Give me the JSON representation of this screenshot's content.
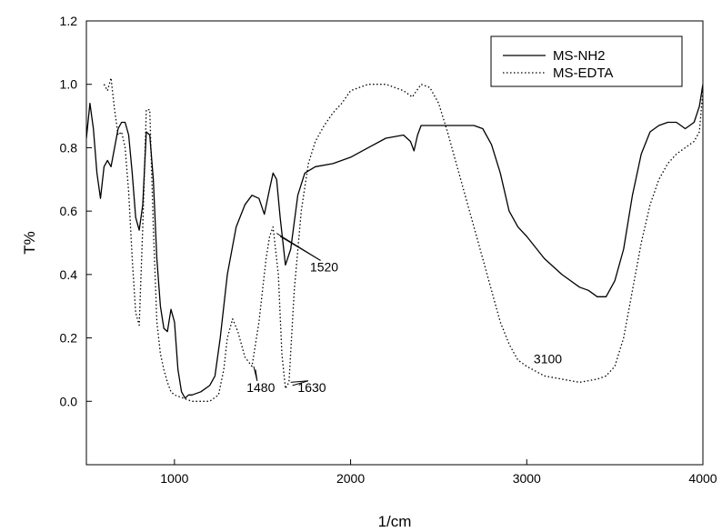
{
  "chart_data": {
    "type": "line",
    "title": "",
    "xlabel": "1/cm",
    "ylabel": "T%",
    "xlim": [
      500,
      4000
    ],
    "ylim": [
      -0.2,
      1.2
    ],
    "xticks": [
      1000,
      2000,
      3000,
      4000
    ],
    "yticks": [
      0.0,
      0.2,
      0.4,
      0.6,
      0.8,
      1.0,
      1.2
    ],
    "ytick_labels": [
      "0.0",
      "0.2",
      "0.4",
      "0.6",
      "0.8",
      "1.0",
      "1.2"
    ],
    "grid": false,
    "legend": {
      "placement": "top-right"
    },
    "series": [
      {
        "name": "MS-NH2",
        "style": "solid",
        "color": "#000000",
        "points": [
          [
            500,
            0.83
          ],
          [
            520,
            0.94
          ],
          [
            540,
            0.86
          ],
          [
            560,
            0.72
          ],
          [
            580,
            0.64
          ],
          [
            600,
            0.74
          ],
          [
            620,
            0.76
          ],
          [
            640,
            0.74
          ],
          [
            660,
            0.8
          ],
          [
            680,
            0.86
          ],
          [
            700,
            0.88
          ],
          [
            720,
            0.88
          ],
          [
            740,
            0.84
          ],
          [
            760,
            0.72
          ],
          [
            780,
            0.58
          ],
          [
            800,
            0.54
          ],
          [
            820,
            0.62
          ],
          [
            840,
            0.85
          ],
          [
            860,
            0.84
          ],
          [
            880,
            0.7
          ],
          [
            900,
            0.45
          ],
          [
            920,
            0.3
          ],
          [
            940,
            0.23
          ],
          [
            960,
            0.22
          ],
          [
            980,
            0.29
          ],
          [
            1000,
            0.25
          ],
          [
            1020,
            0.1
          ],
          [
            1040,
            0.03
          ],
          [
            1060,
            0.01
          ],
          [
            1080,
            0.02
          ],
          [
            1100,
            0.02
          ],
          [
            1150,
            0.03
          ],
          [
            1200,
            0.05
          ],
          [
            1230,
            0.08
          ],
          [
            1260,
            0.2
          ],
          [
            1300,
            0.4
          ],
          [
            1350,
            0.55
          ],
          [
            1400,
            0.62
          ],
          [
            1440,
            0.65
          ],
          [
            1480,
            0.64
          ],
          [
            1510,
            0.59
          ],
          [
            1540,
            0.67
          ],
          [
            1560,
            0.72
          ],
          [
            1580,
            0.7
          ],
          [
            1600,
            0.58
          ],
          [
            1630,
            0.43
          ],
          [
            1660,
            0.48
          ],
          [
            1700,
            0.65
          ],
          [
            1740,
            0.72
          ],
          [
            1800,
            0.74
          ],
          [
            1900,
            0.75
          ],
          [
            2000,
            0.77
          ],
          [
            2100,
            0.8
          ],
          [
            2200,
            0.83
          ],
          [
            2300,
            0.84
          ],
          [
            2340,
            0.82
          ],
          [
            2360,
            0.79
          ],
          [
            2380,
            0.84
          ],
          [
            2400,
            0.87
          ],
          [
            2500,
            0.87
          ],
          [
            2600,
            0.87
          ],
          [
            2700,
            0.87
          ],
          [
            2750,
            0.86
          ],
          [
            2800,
            0.81
          ],
          [
            2850,
            0.72
          ],
          [
            2900,
            0.6
          ],
          [
            2950,
            0.55
          ],
          [
            3000,
            0.52
          ],
          [
            3100,
            0.45
          ],
          [
            3200,
            0.4
          ],
          [
            3300,
            0.36
          ],
          [
            3350,
            0.35
          ],
          [
            3400,
            0.33
          ],
          [
            3450,
            0.33
          ],
          [
            3500,
            0.38
          ],
          [
            3550,
            0.48
          ],
          [
            3600,
            0.65
          ],
          [
            3650,
            0.78
          ],
          [
            3700,
            0.85
          ],
          [
            3750,
            0.87
          ],
          [
            3800,
            0.88
          ],
          [
            3850,
            0.88
          ],
          [
            3900,
            0.86
          ],
          [
            3950,
            0.88
          ],
          [
            3980,
            0.93
          ],
          [
            4000,
            1.0
          ]
        ]
      },
      {
        "name": "MS-EDTA",
        "style": "dotted",
        "color": "#000000",
        "points": [
          [
            600,
            1.0
          ],
          [
            620,
            0.98
          ],
          [
            640,
            1.02
          ],
          [
            660,
            0.92
          ],
          [
            680,
            0.84
          ],
          [
            700,
            0.85
          ],
          [
            720,
            0.8
          ],
          [
            740,
            0.66
          ],
          [
            760,
            0.45
          ],
          [
            780,
            0.28
          ],
          [
            800,
            0.24
          ],
          [
            820,
            0.55
          ],
          [
            840,
            0.92
          ],
          [
            860,
            0.92
          ],
          [
            880,
            0.55
          ],
          [
            900,
            0.25
          ],
          [
            920,
            0.15
          ],
          [
            940,
            0.1
          ],
          [
            960,
            0.06
          ],
          [
            980,
            0.03
          ],
          [
            1000,
            0.02
          ],
          [
            1050,
            0.01
          ],
          [
            1100,
            0.0
          ],
          [
            1150,
            0.0
          ],
          [
            1200,
            0.0
          ],
          [
            1250,
            0.02
          ],
          [
            1280,
            0.1
          ],
          [
            1300,
            0.2
          ],
          [
            1330,
            0.26
          ],
          [
            1360,
            0.22
          ],
          [
            1400,
            0.14
          ],
          [
            1440,
            0.11
          ],
          [
            1480,
            0.25
          ],
          [
            1520,
            0.45
          ],
          [
            1540,
            0.52
          ],
          [
            1560,
            0.55
          ],
          [
            1590,
            0.4
          ],
          [
            1610,
            0.15
          ],
          [
            1630,
            0.04
          ],
          [
            1650,
            0.06
          ],
          [
            1680,
            0.35
          ],
          [
            1720,
            0.6
          ],
          [
            1760,
            0.75
          ],
          [
            1800,
            0.82
          ],
          [
            1850,
            0.87
          ],
          [
            1900,
            0.91
          ],
          [
            1950,
            0.94
          ],
          [
            2000,
            0.98
          ],
          [
            2100,
            1.0
          ],
          [
            2200,
            1.0
          ],
          [
            2300,
            0.98
          ],
          [
            2350,
            0.96
          ],
          [
            2400,
            1.0
          ],
          [
            2450,
            0.99
          ],
          [
            2500,
            0.94
          ],
          [
            2550,
            0.85
          ],
          [
            2600,
            0.75
          ],
          [
            2650,
            0.65
          ],
          [
            2700,
            0.55
          ],
          [
            2750,
            0.45
          ],
          [
            2800,
            0.35
          ],
          [
            2850,
            0.25
          ],
          [
            2900,
            0.18
          ],
          [
            2950,
            0.13
          ],
          [
            3000,
            0.11
          ],
          [
            3100,
            0.08
          ],
          [
            3200,
            0.07
          ],
          [
            3300,
            0.06
          ],
          [
            3400,
            0.07
          ],
          [
            3450,
            0.08
          ],
          [
            3500,
            0.11
          ],
          [
            3550,
            0.2
          ],
          [
            3600,
            0.35
          ],
          [
            3650,
            0.5
          ],
          [
            3700,
            0.62
          ],
          [
            3750,
            0.7
          ],
          [
            3800,
            0.75
          ],
          [
            3850,
            0.78
          ],
          [
            3900,
            0.8
          ],
          [
            3950,
            0.82
          ],
          [
            3980,
            0.85
          ],
          [
            4000,
            0.98
          ]
        ]
      }
    ],
    "annotations": [
      {
        "text": "1520",
        "x": 1850,
        "y": 0.41,
        "arrows": [
          [
            1580,
            0.53
          ],
          [
            1600,
            0.52
          ]
        ]
      },
      {
        "text": "1480",
        "x": 1490,
        "y": 0.03,
        "arrows": [
          [
            1450,
            0.11
          ],
          [
            1460,
            0.1
          ]
        ]
      },
      {
        "text": "1630",
        "x": 1780,
        "y": 0.03,
        "arrows": [
          [
            1660,
            0.06
          ],
          [
            1670,
            0.05
          ]
        ]
      },
      {
        "text": "3100",
        "x": 3120,
        "y": 0.12,
        "arrows": []
      }
    ]
  }
}
